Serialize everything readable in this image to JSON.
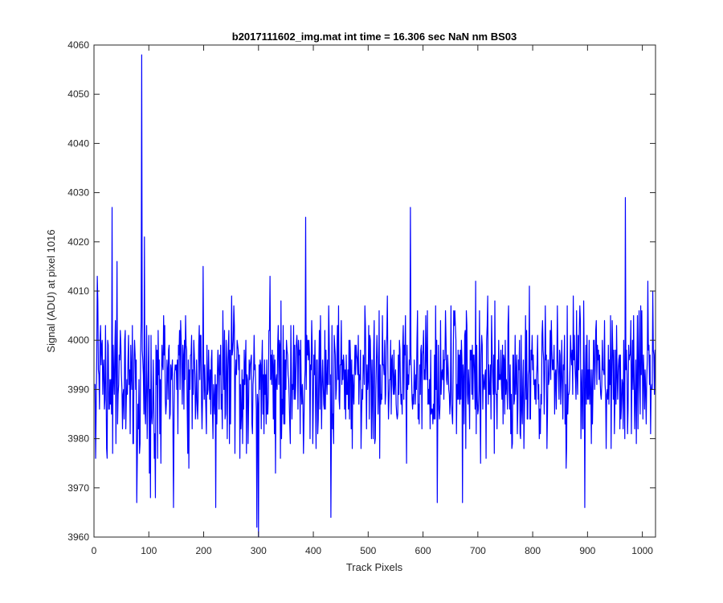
{
  "chart_data": {
    "type": "line",
    "title": "b2017111602_img.mat int time = 16.306 sec  NaN nm BS03",
    "xlabel": "Track Pixels",
    "ylabel": "Signal (ADU) at pixel 1016",
    "xlim": [
      0,
      1024
    ],
    "ylim": [
      3960,
      4060
    ],
    "xticks": [
      0,
      100,
      200,
      300,
      400,
      500,
      600,
      700,
      800,
      900,
      1000
    ],
    "yticks": [
      3960,
      3970,
      3980,
      3990,
      4000,
      4010,
      4020,
      4030,
      4040,
      4050,
      4060
    ],
    "xtick_labels": [
      "0",
      "100",
      "200",
      "300",
      "400",
      "500",
      "600",
      "700",
      "800",
      "900",
      "1000"
    ],
    "ytick_labels": [
      "3960",
      "3970",
      "3980",
      "3990",
      "4000",
      "4010",
      "4020",
      "4030",
      "4040",
      "4050",
      "4060"
    ],
    "grid": false,
    "series": [
      {
        "color": "#0000ff",
        "n_points": 1024,
        "x_start": 1,
        "x_step": 1,
        "values_approx": "noisy signal fluctuating about 3993 ADU, mostly between 3975 and 4012",
        "notable_points": [
          {
            "x": 3,
            "y": 3976
          },
          {
            "x": 6,
            "y": 4013
          },
          {
            "x": 33,
            "y": 4027
          },
          {
            "x": 42,
            "y": 4016
          },
          {
            "x": 78,
            "y": 3967
          },
          {
            "x": 87,
            "y": 4058
          },
          {
            "x": 92,
            "y": 4021
          },
          {
            "x": 103,
            "y": 3968
          },
          {
            "x": 112,
            "y": 3968
          },
          {
            "x": 145,
            "y": 3966
          },
          {
            "x": 199,
            "y": 4015
          },
          {
            "x": 222,
            "y": 3966
          },
          {
            "x": 297,
            "y": 3962
          },
          {
            "x": 300,
            "y": 3960
          },
          {
            "x": 386,
            "y": 4025
          },
          {
            "x": 432,
            "y": 3964
          },
          {
            "x": 577,
            "y": 4027
          },
          {
            "x": 626,
            "y": 3967
          },
          {
            "x": 672,
            "y": 3967
          },
          {
            "x": 895,
            "y": 3966
          },
          {
            "x": 969,
            "y": 4029
          },
          {
            "x": 1010,
            "y": 4012
          }
        ]
      }
    ]
  }
}
